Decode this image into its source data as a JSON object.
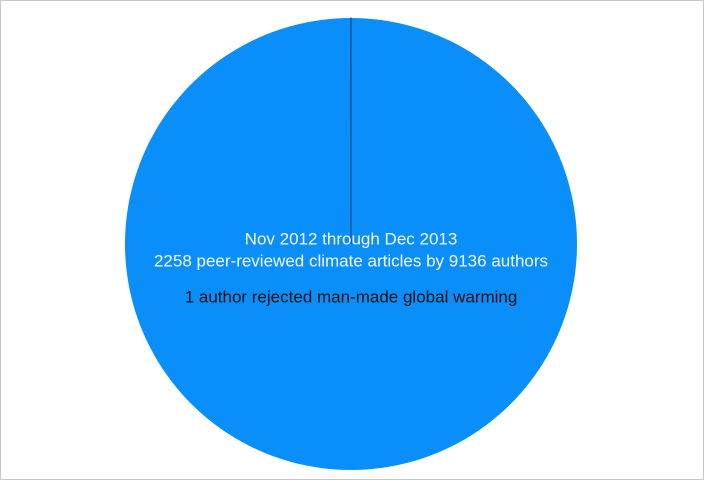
{
  "chart_data": {
    "type": "pie",
    "title": "Nov 2012 through Dec 2013",
    "subtitle": "2258 peer-reviewed climate articles by 9136 authors",
    "annotation": "1 author rejected man-made global warming",
    "categories": [
      null,
      null
    ],
    "values": [
      9135,
      1
    ],
    "colors": [
      "#0a8ffa",
      "#1e3f70"
    ]
  }
}
